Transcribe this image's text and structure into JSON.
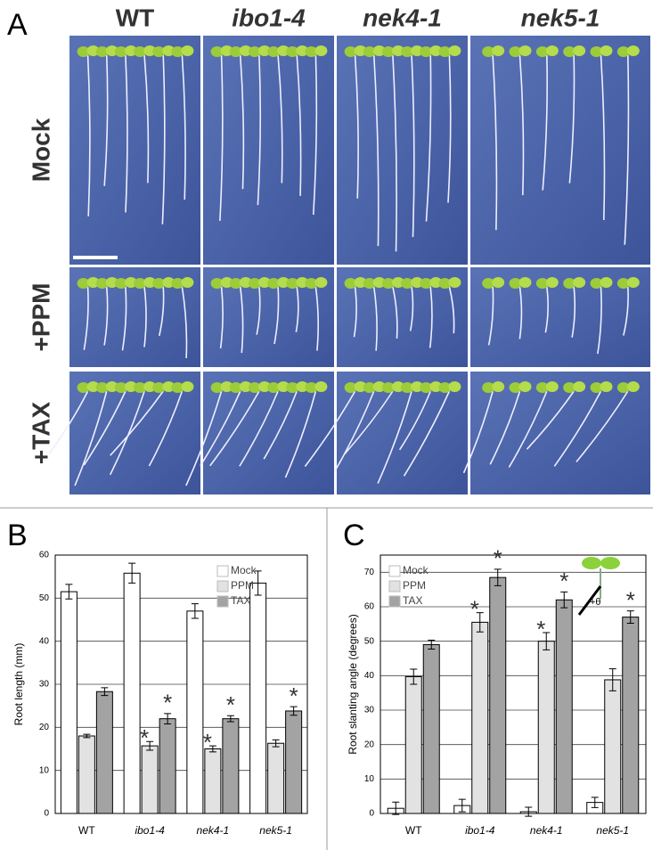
{
  "panels": {
    "a": "A",
    "b": "B",
    "c": "C"
  },
  "photo": {
    "columns": [
      "WT",
      "ibo1-4",
      "nek4-1",
      "nek5-1"
    ],
    "rows": [
      "Mock",
      "+PPM",
      "+TAX"
    ]
  },
  "chart_data": [
    {
      "type": "bar",
      "y_label": "Root length (mm)",
      "categories": [
        "WT",
        "ibo1-4",
        "nek4-1",
        "nek5-1"
      ],
      "ylim": [
        0,
        60
      ],
      "yticks": [
        0,
        10,
        20,
        30,
        40,
        50,
        60
      ],
      "grid": true,
      "legend": "top-right",
      "series": [
        {
          "name": "Mock",
          "color": "#ffffff",
          "values": [
            51.5,
            55.8,
            47,
            53.5
          ],
          "errors": [
            1.7,
            2.3,
            1.7,
            2.8
          ],
          "annotations": [
            null,
            null,
            null,
            null
          ]
        },
        {
          "name": "PPM",
          "color": "#e2e2e2",
          "values": [
            18,
            15.7,
            15,
            16.3
          ],
          "errors": [
            0.4,
            1,
            0.7,
            0.8
          ],
          "annotations": [
            null,
            "*",
            "*",
            null
          ]
        },
        {
          "name": "TAX",
          "color": "#a3a3a3",
          "values": [
            28.3,
            22,
            22,
            23.8
          ],
          "errors": [
            0.9,
            1.2,
            0.7,
            1
          ],
          "annotations": [
            null,
            "*",
            "*",
            "*"
          ]
        }
      ]
    },
    {
      "type": "bar",
      "y_label": "Root slanting angle (degrees)",
      "categories": [
        "WT",
        "ibo1-4",
        "nek4-1",
        "nek5-1"
      ],
      "ylim": [
        0,
        75
      ],
      "yticks": [
        0,
        10,
        20,
        30,
        40,
        50,
        60,
        70
      ],
      "grid": true,
      "legend": "top-left",
      "inset_label": "+θ",
      "series": [
        {
          "name": "Mock",
          "color": "#ffffff",
          "values": [
            1.5,
            2.3,
            0.5,
            3.2
          ],
          "errors": [
            1.8,
            1.8,
            1.3,
            1.5
          ],
          "annotations": [
            null,
            null,
            null,
            null
          ]
        },
        {
          "name": "PPM",
          "color": "#e2e2e2",
          "values": [
            39.7,
            55.5,
            50,
            38.8
          ],
          "errors": [
            2.2,
            2.8,
            2.5,
            3.2
          ],
          "annotations": [
            null,
            "*",
            "*",
            null
          ]
        },
        {
          "name": "TAX",
          "color": "#a3a3a3",
          "values": [
            49,
            68.5,
            62,
            57
          ],
          "errors": [
            1.3,
            2.4,
            2.3,
            1.8
          ],
          "annotations": [
            null,
            "*",
            "*",
            "*"
          ]
        }
      ]
    }
  ]
}
